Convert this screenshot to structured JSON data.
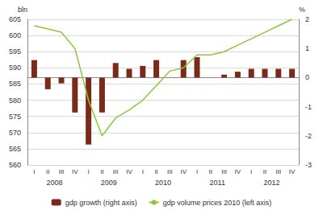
{
  "chart_data": {
    "type": "bar",
    "categories": [
      "I",
      "II",
      "III",
      "IV",
      "I",
      "II",
      "III",
      "IV",
      "I",
      "II",
      "III",
      "IV",
      "I",
      "II",
      "III",
      "IV",
      "I",
      "II",
      "III",
      "IV"
    ],
    "years": [
      "2008",
      "2009",
      "2010",
      "2011",
      "2012"
    ],
    "series": [
      {
        "name": "gdp growth (right axis)",
        "type": "bar",
        "axis": "y2",
        "color": "#7a2a18",
        "values": [
          0.6,
          -0.4,
          -0.2,
          -1.2,
          -2.3,
          -1.2,
          0.5,
          0.3,
          0.4,
          0.6,
          0.0,
          0.6,
          0.7,
          0.0,
          0.1,
          0.2,
          0.3,
          0.3,
          0.3,
          0.3
        ]
      },
      {
        "name": "gdp volume prices 2010 (left axis)",
        "type": "line",
        "color": "#8dc63f",
        "values": [
          603,
          602,
          601,
          596,
          580,
          569,
          574.5,
          577,
          580,
          584.5,
          589,
          590,
          594,
          594,
          595,
          597,
          599,
          601,
          603,
          605
        ]
      }
    ],
    "ylabel": "bln",
    "y2label": "%",
    "ylim": [
      560,
      605
    ],
    "yticks": [
      560,
      565,
      570,
      575,
      580,
      585,
      590,
      595,
      600,
      605
    ],
    "y2lim": [
      -3,
      2
    ],
    "y2ticks": [
      -3,
      -2,
      -1,
      0,
      1,
      2
    ],
    "grid": true,
    "legend": "bottom"
  }
}
